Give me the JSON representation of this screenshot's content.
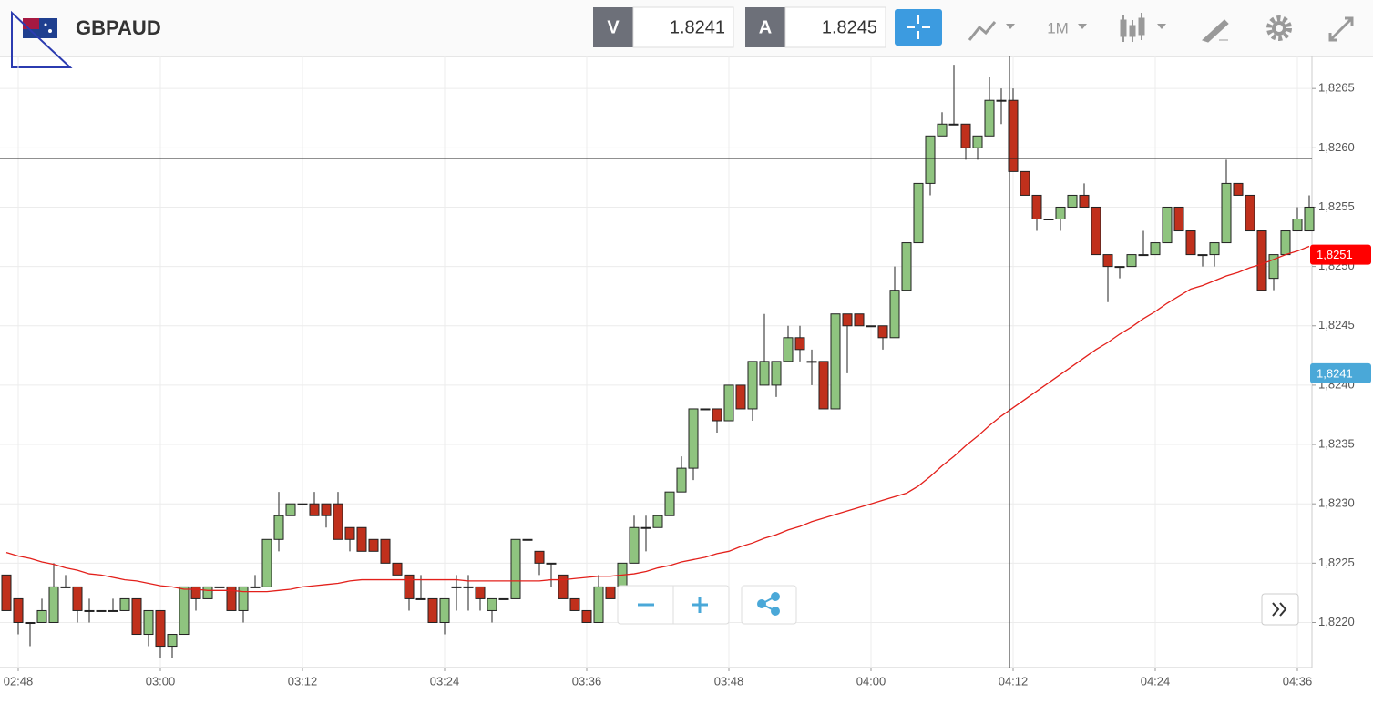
{
  "toolbar": {
    "symbol": "GBPAUD",
    "bid_label": "V",
    "bid": 1.8241,
    "ask_label": "A",
    "ask": 1.8245,
    "timeframe": "1M"
  },
  "chart_data": {
    "type": "candlestick",
    "categories": [
      null,
      "02:48",
      null,
      null,
      null,
      null,
      null,
      null,
      null,
      null,
      null,
      null,
      null,
      "03:00",
      null,
      null,
      null,
      null,
      null,
      null,
      null,
      null,
      null,
      null,
      null,
      "03:12",
      null,
      null,
      null,
      null,
      null,
      null,
      null,
      null,
      null,
      null,
      null,
      "03:24",
      null,
      null,
      null,
      null,
      null,
      null,
      null,
      null,
      null,
      null,
      null,
      "03:36",
      null,
      null,
      null,
      null,
      null,
      null,
      null,
      null,
      null,
      null,
      null,
      "03:48",
      null,
      null,
      null,
      null,
      null,
      null,
      null,
      null,
      null,
      null,
      null,
      "04:00",
      null,
      null,
      null,
      null,
      null,
      null,
      null,
      null,
      null,
      null,
      null,
      "04:12",
      null,
      null,
      null,
      null,
      null,
      null,
      null,
      null,
      null,
      null,
      null,
      "04:24",
      null,
      null,
      null,
      null,
      null,
      null,
      null,
      null,
      null,
      null,
      null,
      "04:36",
      null
    ],
    "open": [
      1.8224,
      1.8222,
      1.822,
      1.822,
      1.822,
      1.8223,
      1.8223,
      1.8221,
      1.8221,
      1.8221,
      1.8221,
      1.8222,
      1.8219,
      1.8221,
      1.8218,
      1.8219,
      1.8223,
      1.8222,
      1.8223,
      1.8223,
      1.8221,
      1.8223,
      1.8223,
      1.8227,
      1.8229,
      1.823,
      1.823,
      1.823,
      1.823,
      1.8228,
      1.8228,
      1.8227,
      1.8227,
      1.8225,
      1.8224,
      1.8222,
      1.8222,
      1.822,
      1.8223,
      1.8223,
      1.8223,
      1.8221,
      1.8222,
      1.8222,
      1.8227,
      1.8226,
      1.8225,
      1.8224,
      1.8222,
      1.8221,
      1.822,
      1.8223,
      1.8223,
      1.8225,
      1.8228,
      1.8228,
      1.8229,
      1.8231,
      1.8233,
      1.8238,
      1.8238,
      1.8237,
      1.824,
      1.8238,
      1.824,
      1.824,
      1.8242,
      1.8244,
      1.8242,
      1.8242,
      1.8238,
      1.8246,
      1.8246,
      1.8245,
      1.8245,
      1.8244,
      1.8248,
      1.8252,
      1.8257,
      1.8261,
      1.8262,
      1.8262,
      1.826,
      1.8261,
      1.8264,
      1.8264,
      1.8258,
      1.8256,
      1.8254,
      1.8254,
      1.8255,
      1.8256,
      1.8255,
      1.8251,
      1.825,
      1.825,
      1.8251,
      1.8251,
      1.8252,
      1.8255,
      1.8253,
      1.8251,
      1.8251,
      1.8252,
      1.8257,
      1.8256,
      1.8253,
      1.8249,
      1.8251,
      1.8253,
      1.8253
    ],
    "high": [
      1.8224,
      1.8222,
      1.822,
      1.8222,
      1.8225,
      1.8224,
      1.8223,
      1.8222,
      1.8221,
      1.8222,
      1.8222,
      1.8222,
      1.8221,
      1.8221,
      1.8219,
      1.8223,
      1.8223,
      1.8223,
      1.8223,
      1.8223,
      1.8223,
      1.8224,
      1.8227,
      1.8231,
      1.823,
      1.823,
      1.8231,
      1.823,
      1.8231,
      1.8228,
      1.8228,
      1.8227,
      1.8227,
      1.8225,
      1.8224,
      1.8224,
      1.8222,
      1.8222,
      1.8224,
      1.8224,
      1.8223,
      1.8222,
      1.8222,
      1.8227,
      1.8227,
      1.8226,
      1.8225,
      1.8224,
      1.8222,
      1.8221,
      1.8224,
      1.8223,
      1.8225,
      1.8229,
      1.8229,
      1.8229,
      1.8231,
      1.8234,
      1.8238,
      1.8238,
      1.8238,
      1.824,
      1.824,
      1.8242,
      1.8246,
      1.8242,
      1.8245,
      1.8245,
      1.8243,
      1.8242,
      1.8246,
      1.8246,
      1.8246,
      1.8245,
      1.8245,
      1.825,
      1.8252,
      1.8257,
      1.8261,
      1.8263,
      1.8267,
      1.8262,
      1.8261,
      1.8266,
      1.8265,
      1.8265,
      1.8258,
      1.8256,
      1.8254,
      1.8255,
      1.8256,
      1.8257,
      1.8255,
      1.8251,
      1.825,
      1.8251,
      1.8253,
      1.8252,
      1.8255,
      1.8255,
      1.8253,
      1.8251,
      1.8252,
      1.8259,
      1.8257,
      1.8256,
      1.8253,
      1.8251,
      1.8253,
      1.8255,
      1.8256
    ],
    "low": [
      1.8221,
      1.8219,
      1.8218,
      1.822,
      1.822,
      1.8223,
      1.822,
      1.822,
      1.8221,
      1.8221,
      1.8221,
      1.8219,
      1.8218,
      1.8217,
      1.8217,
      1.8219,
      1.8221,
      1.8222,
      1.8223,
      1.8221,
      1.822,
      1.8223,
      1.8223,
      1.8226,
      1.8229,
      1.823,
      1.8229,
      1.8228,
      1.8227,
      1.8226,
      1.8226,
      1.8226,
      1.8225,
      1.8224,
      1.8221,
      1.8222,
      1.822,
      1.8219,
      1.8221,
      1.8221,
      1.8221,
      1.822,
      1.8222,
      1.8222,
      1.8227,
      1.8224,
      1.8223,
      1.8222,
      1.8221,
      1.822,
      1.822,
      1.8222,
      1.8223,
      1.8225,
      1.8226,
      1.8228,
      1.8229,
      1.8231,
      1.8232,
      1.8238,
      1.8236,
      1.8237,
      1.8238,
      1.8237,
      1.824,
      1.8239,
      1.8242,
      1.8242,
      1.824,
      1.8238,
      1.8238,
      1.8241,
      1.8245,
      1.8245,
      1.8243,
      1.8244,
      1.8248,
      1.8252,
      1.8256,
      1.8261,
      1.8262,
      1.8259,
      1.8259,
      1.8261,
      1.8262,
      1.8258,
      1.8256,
      1.8253,
      1.8254,
      1.8253,
      1.8255,
      1.8255,
      1.8251,
      1.8247,
      1.8249,
      1.825,
      1.8251,
      1.8251,
      1.8252,
      1.8253,
      1.8251,
      1.825,
      1.825,
      1.8252,
      1.8256,
      1.8253,
      1.8248,
      1.8248,
      1.8251,
      1.8253,
      1.8253
    ],
    "close": [
      1.8221,
      1.822,
      1.822,
      1.8221,
      1.8223,
      1.8223,
      1.8221,
      1.8221,
      1.8221,
      1.8221,
      1.8222,
      1.8219,
      1.8221,
      1.8218,
      1.8219,
      1.8223,
      1.8222,
      1.8223,
      1.8223,
      1.8221,
      1.8223,
      1.8223,
      1.8227,
      1.8229,
      1.823,
      1.823,
      1.8229,
      1.8229,
      1.8227,
      1.8227,
      1.8226,
      1.8226,
      1.8225,
      1.8224,
      1.8222,
      1.8222,
      1.822,
      1.8222,
      1.8223,
      1.8223,
      1.8222,
      1.8222,
      1.8222,
      1.8227,
      1.8227,
      1.8225,
      1.8225,
      1.8222,
      1.8221,
      1.822,
      1.8223,
      1.8222,
      1.8225,
      1.8228,
      1.8228,
      1.8229,
      1.8231,
      1.8233,
      1.8238,
      1.8238,
      1.8237,
      1.824,
      1.8238,
      1.8242,
      1.8242,
      1.8242,
      1.8244,
      1.8243,
      1.8242,
      1.8238,
      1.8246,
      1.8245,
      1.8245,
      1.8245,
      1.8244,
      1.8248,
      1.8252,
      1.8257,
      1.8261,
      1.8262,
      1.8262,
      1.826,
      1.8261,
      1.8264,
      1.8264,
      1.8258,
      1.8256,
      1.8254,
      1.8254,
      1.8255,
      1.8256,
      1.8255,
      1.8251,
      1.825,
      1.825,
      1.8251,
      1.8251,
      1.8252,
      1.8255,
      1.8253,
      1.8251,
      1.8251,
      1.8252,
      1.8257,
      1.8256,
      1.8253,
      1.8248,
      1.8251,
      1.8253,
      1.8254,
      1.8255
    ],
    "up_color": "#8fc47f",
    "down_color": "#c0301c",
    "moving_average": {
      "color": "#e3201b",
      "values": [
        1.82259,
        1.82256,
        1.82254,
        1.82251,
        1.82249,
        1.82246,
        1.82244,
        1.82241,
        1.8224,
        1.82238,
        1.82236,
        1.82235,
        1.82233,
        1.82231,
        1.8223,
        1.82228,
        1.82228,
        1.82227,
        1.82227,
        1.82227,
        1.82226,
        1.82226,
        1.82226,
        1.82227,
        1.82228,
        1.8223,
        1.82231,
        1.82232,
        1.82233,
        1.82235,
        1.82236,
        1.82236,
        1.82236,
        1.82236,
        1.82236,
        1.82236,
        1.82236,
        1.82236,
        1.82236,
        1.82235,
        1.82235,
        1.82235,
        1.82235,
        1.82235,
        1.82235,
        1.82235,
        1.82236,
        1.82236,
        1.82237,
        1.82238,
        1.82239,
        1.82239,
        1.8224,
        1.82241,
        1.82243,
        1.82246,
        1.82248,
        1.82251,
        1.82253,
        1.82255,
        1.82258,
        1.8226,
        1.82264,
        1.82267,
        1.82271,
        1.82274,
        1.82278,
        1.82281,
        1.82285,
        1.82288,
        1.82291,
        1.82294,
        1.82297,
        1.823,
        1.82303,
        1.82306,
        1.82309,
        1.82315,
        1.82323,
        1.82332,
        1.8234,
        1.82349,
        1.82357,
        1.82366,
        1.82374,
        1.82381,
        1.82388,
        1.82395,
        1.82402,
        1.82409,
        1.82416,
        1.82423,
        1.8243,
        1.82436,
        1.82443,
        1.82449,
        1.82456,
        1.82462,
        1.82469,
        1.82475,
        1.82481,
        1.82484,
        1.82488,
        1.82492,
        1.82495,
        1.82499,
        1.82502,
        1.82506,
        1.8251,
        1.82513,
        1.82517
      ]
    },
    "ylim": [
      1.82162,
      1.82677
    ],
    "yticks": [
      {
        "value": 1.822,
        "label": "1,8220"
      },
      {
        "value": 1.8225,
        "label": "1,8225"
      },
      {
        "value": 1.823,
        "label": "1,8230"
      },
      {
        "value": 1.8235,
        "label": "1,8235"
      },
      {
        "value": 1.824,
        "label": "1,8240"
      },
      {
        "value": 1.8245,
        "label": "1,8245"
      },
      {
        "value": 1.825,
        "label": "1,8250"
      },
      {
        "value": 1.8255,
        "label": "1,8255"
      },
      {
        "value": 1.826,
        "label": "1,8260"
      },
      {
        "value": 1.8265,
        "label": "1,8265"
      }
    ],
    "price_badges": [
      {
        "value": 1.8251,
        "label": "1,8251",
        "color": "#ff0000"
      },
      {
        "value": 1.8241,
        "label": "1,8241",
        "color": "#4aa8d8"
      }
    ],
    "crosshair": {
      "y": 1.82591,
      "x": 85
    },
    "grid": true
  }
}
